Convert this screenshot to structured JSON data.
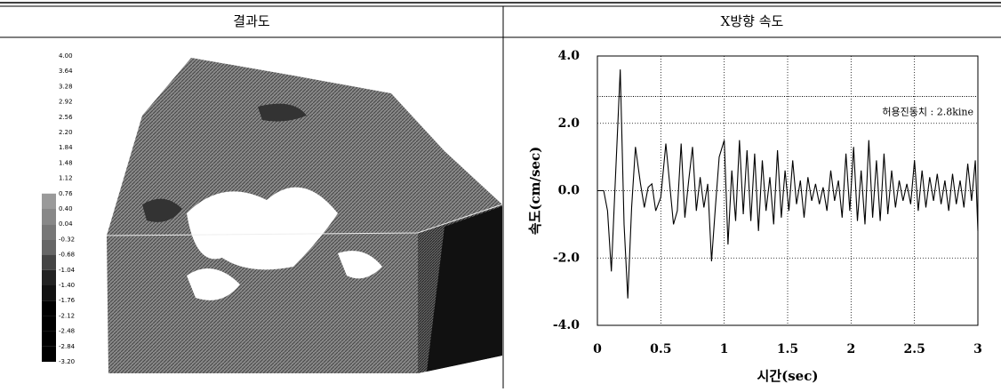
{
  "table": {
    "headers": [
      "결과도",
      "X방향 속도"
    ]
  },
  "legend": {
    "labels": [
      "4.00",
      "3.64",
      "3.28",
      "2.92",
      "2.56",
      "2.20",
      "1.84",
      "1.48",
      "1.12",
      "0.76",
      "0.40",
      "0.04",
      "-0.32",
      "-0.68",
      "-1.04",
      "-1.40",
      "-1.76",
      "-2.12",
      "-2.48",
      "-2.84",
      "-3.20"
    ]
  },
  "chart_data": {
    "type": "line",
    "xlabel": "시간(sec)",
    "ylabel": "속도(cm/sec)",
    "xlim": [
      0,
      3
    ],
    "xticks": [
      0,
      0.5,
      1,
      1.5,
      2,
      2.5,
      3
    ],
    "ylim": [
      -4,
      4
    ],
    "yticks": [
      {
        "value": 4,
        "label": "4.0"
      },
      {
        "value": 2,
        "label": "2.0"
      },
      {
        "value": 0,
        "label": "0.0"
      },
      {
        "value": -2,
        "label": "-2.0"
      },
      {
        "value": -4,
        "label": "-4.0"
      }
    ],
    "grid": true,
    "threshold": {
      "value": 2.8,
      "label": "허용진동치 : 2.8kine"
    },
    "series": [
      {
        "color": "#000000",
        "x": [
          0,
          0.05,
          0.08,
          0.11,
          0.14,
          0.18,
          0.21,
          0.24,
          0.27,
          0.3,
          0.34,
          0.37,
          0.4,
          0.43,
          0.46,
          0.5,
          0.54,
          0.57,
          0.6,
          0.63,
          0.66,
          0.69,
          0.72,
          0.75,
          0.78,
          0.81,
          0.84,
          0.87,
          0.9,
          0.93,
          0.96,
          1.0,
          1.03,
          1.06,
          1.09,
          1.12,
          1.15,
          1.18,
          1.21,
          1.24,
          1.27,
          1.3,
          1.33,
          1.36,
          1.39,
          1.42,
          1.45,
          1.48,
          1.51,
          1.54,
          1.57,
          1.6,
          1.63,
          1.66,
          1.69,
          1.72,
          1.75,
          1.78,
          1.81,
          1.84,
          1.87,
          1.9,
          1.93,
          1.96,
          1.99,
          2.02,
          2.05,
          2.08,
          2.11,
          2.14,
          2.17,
          2.2,
          2.23,
          2.26,
          2.29,
          2.32,
          2.35,
          2.38,
          2.41,
          2.44,
          2.47,
          2.5,
          2.53,
          2.56,
          2.59,
          2.62,
          2.65,
          2.68,
          2.71,
          2.74,
          2.77,
          2.8,
          2.83,
          2.86,
          2.89,
          2.92,
          2.95,
          2.98,
          3.0
        ],
        "values": [
          0,
          0,
          -0.6,
          -2.4,
          0.2,
          3.6,
          -1.0,
          -3.2,
          -0.5,
          1.3,
          0.2,
          -0.5,
          0.1,
          0.2,
          -0.6,
          -0.2,
          1.4,
          0.2,
          -1.0,
          -0.6,
          1.4,
          -0.8,
          0.3,
          1.3,
          -0.6,
          0.4,
          -0.5,
          0.2,
          -2.1,
          -0.5,
          1.0,
          1.5,
          -1.6,
          0.6,
          -0.9,
          1.5,
          -0.7,
          1.2,
          -0.9,
          1.1,
          -1.2,
          0.9,
          -0.6,
          0.4,
          -1.0,
          1.2,
          -0.8,
          0.6,
          -0.6,
          0.9,
          -0.4,
          0.3,
          -0.8,
          0.4,
          -0.3,
          0.2,
          -0.4,
          0.1,
          -0.6,
          0.6,
          -0.3,
          0.3,
          -0.8,
          1.1,
          -0.6,
          1.3,
          -0.9,
          0.6,
          -1.0,
          1.5,
          -0.8,
          0.9,
          -0.9,
          1.1,
          -0.7,
          0.6,
          -0.5,
          0.3,
          -0.3,
          0.2,
          -0.4,
          0.9,
          -0.6,
          0.6,
          -0.5,
          0.4,
          -0.3,
          0.5,
          -0.4,
          0.3,
          -0.6,
          0.5,
          -0.4,
          0.3,
          -0.5,
          0.8,
          -0.3,
          0.9,
          -1.2
        ]
      }
    ]
  }
}
